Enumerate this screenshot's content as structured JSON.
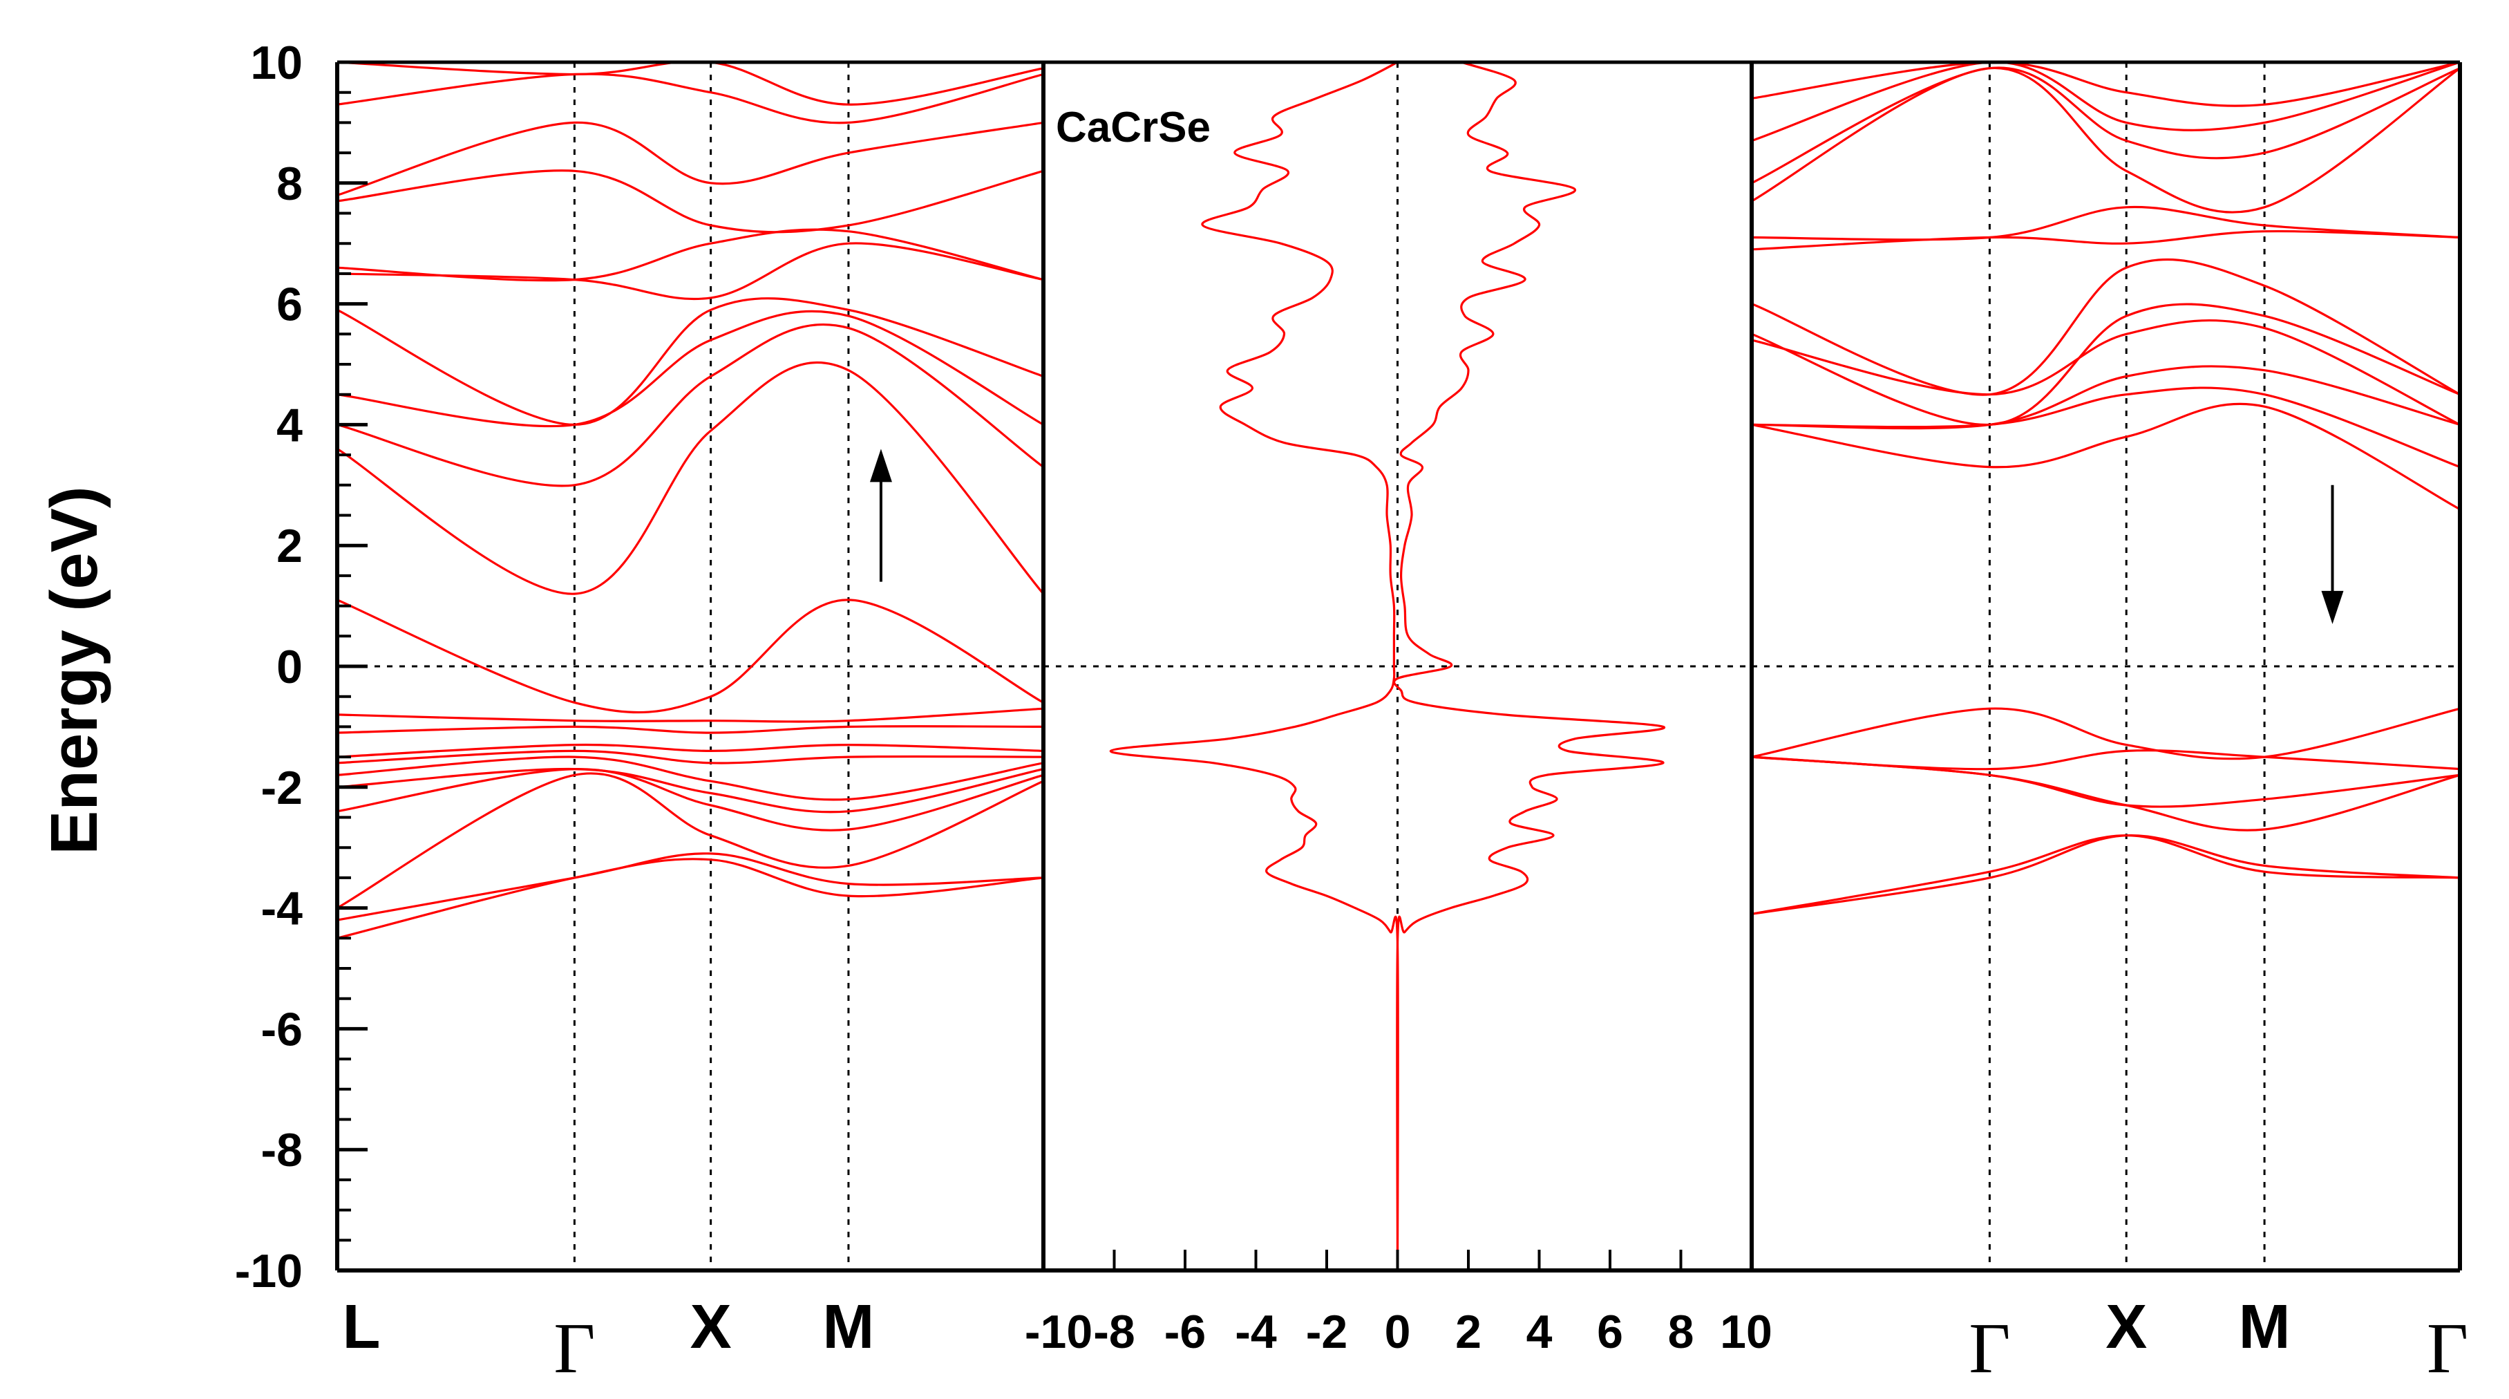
{
  "colors": {
    "bands": "#ff0000",
    "dos": "#ff0000",
    "axes": "#000000",
    "guides": "#000000",
    "arrow": "#000000"
  },
  "chart_data": {
    "type": "line",
    "ylabel": "Energy (eV)",
    "ylim": [
      -10,
      10
    ],
    "yticks": [
      10,
      8,
      6,
      4,
      2,
      0,
      -2,
      -4,
      -6,
      -8,
      -10
    ],
    "fermi_level": 0,
    "panels": [
      {
        "name": "spin-up band structure",
        "kpath_labels": [
          "L",
          "Γ",
          "X",
          "M",
          "Γ"
        ],
        "kpoint_positions": [
          0,
          0.336,
          0.529,
          0.724,
          1
        ],
        "kpoint_visible_labels": [
          "L",
          "Γ",
          "X",
          "M"
        ],
        "spin_arrow": "up",
        "spin_arrow_at": {
          "k": 0.77,
          "from_e": 1.4,
          "to_e": 3.6
        },
        "bands": [
          {
            "k": [
              0,
              0.336,
              0.529,
              0.724,
              1
            ],
            "e": [
              -4.5,
              -3.5,
              -3.2,
              -3.8,
              -3.5
            ]
          },
          {
            "k": [
              0,
              0.336,
              0.529,
              0.724,
              1
            ],
            "e": [
              -4.2,
              -3.5,
              -3.1,
              -3.6,
              -3.5
            ]
          },
          {
            "k": [
              0,
              0.336,
              0.529,
              0.724,
              1
            ],
            "e": [
              -4.0,
              -1.8,
              -2.8,
              -3.3,
              -1.9
            ]
          },
          {
            "k": [
              0,
              0.336,
              0.529,
              0.724,
              1
            ],
            "e": [
              -2.4,
              -1.7,
              -2.3,
              -2.7,
              -1.8
            ]
          },
          {
            "k": [
              0,
              0.336,
              0.529,
              0.724,
              1
            ],
            "e": [
              -2.0,
              -1.7,
              -2.1,
              -2.4,
              -1.7
            ]
          },
          {
            "k": [
              0,
              0.336,
              0.529,
              0.724,
              1
            ],
            "e": [
              -1.8,
              -1.5,
              -1.9,
              -2.2,
              -1.6
            ]
          },
          {
            "k": [
              0,
              0.336,
              0.529,
              0.724,
              1
            ],
            "e": [
              -1.6,
              -1.4,
              -1.6,
              -1.5,
              -1.5
            ]
          },
          {
            "k": [
              0,
              0.336,
              0.529,
              0.724,
              1
            ],
            "e": [
              -1.5,
              -1.3,
              -1.4,
              -1.3,
              -1.4
            ]
          },
          {
            "k": [
              0,
              0.336,
              0.529,
              0.724,
              1
            ],
            "e": [
              -1.1,
              -1.0,
              -1.1,
              -1.0,
              -1.0
            ]
          },
          {
            "k": [
              0,
              0.336,
              0.529,
              0.724,
              1
            ],
            "e": [
              -0.8,
              -0.9,
              -0.9,
              -0.9,
              -0.7
            ]
          },
          {
            "k": [
              0,
              0.336,
              0.529,
              0.724,
              1
            ],
            "e": [
              1.1,
              -0.6,
              -0.5,
              1.1,
              -0.6
            ]
          },
          {
            "k": [
              0,
              0.336,
              0.529,
              0.724,
              1
            ],
            "e": [
              3.6,
              1.2,
              3.9,
              4.9,
              1.2
            ]
          },
          {
            "k": [
              0,
              0.336,
              0.529,
              0.724,
              1
            ],
            "e": [
              4.0,
              3.0,
              4.8,
              5.6,
              3.3
            ]
          },
          {
            "k": [
              0,
              0.336,
              0.529,
              0.724,
              1
            ],
            "e": [
              4.5,
              4.0,
              5.4,
              5.8,
              4.0
            ]
          },
          {
            "k": [
              0,
              0.336,
              0.529,
              0.724,
              1
            ],
            "e": [
              5.9,
              4.0,
              5.9,
              5.9,
              4.8
            ]
          },
          {
            "k": [
              0,
              0.336,
              0.529,
              0.724,
              1
            ],
            "e": [
              6.5,
              6.4,
              6.1,
              7.0,
              6.4
            ]
          },
          {
            "k": [
              0,
              0.336,
              0.529,
              0.724,
              1
            ],
            "e": [
              6.6,
              6.4,
              7.0,
              7.2,
              6.4
            ]
          },
          {
            "k": [
              0,
              0.336,
              0.529,
              0.724,
              1
            ],
            "e": [
              7.7,
              8.2,
              7.3,
              7.3,
              8.2
            ]
          },
          {
            "k": [
              0,
              0.336,
              0.529,
              0.724,
              1
            ],
            "e": [
              7.8,
              9.0,
              8.0,
              8.5,
              9.0
            ]
          },
          {
            "k": [
              0,
              0.336,
              0.529,
              0.724,
              1
            ],
            "e": [
              9.3,
              9.8,
              9.5,
              9.0,
              9.8
            ]
          },
          {
            "k": [
              0,
              0.336,
              0.529,
              0.724,
              1
            ],
            "e": [
              10.0,
              9.8,
              10.0,
              9.3,
              9.9
            ]
          }
        ]
      },
      {
        "name": "density of states",
        "label": "CaCrSe",
        "xlim": [
          -10,
          10
        ],
        "xticks": [
          -10,
          -8,
          -6,
          -4,
          -2,
          0,
          2,
          4,
          6,
          8,
          10
        ],
        "spin_down_dos": {
          "e": [
            -10,
            -4.6,
            -4.4,
            -4.2,
            -4.0,
            -3.8,
            -3.6,
            -3.4,
            -3.2,
            -3.0,
            -2.8,
            -2.6,
            -2.4,
            -2.2,
            -2.0,
            -1.8,
            -1.6,
            -1.4,
            -1.2,
            -1.0,
            -0.8,
            -0.6,
            -0.4,
            -0.2,
            0.0,
            0.5,
            1.0,
            1.5,
            2.0,
            2.5,
            3.0,
            3.3,
            3.5,
            3.7,
            4.0,
            4.3,
            4.6,
            4.9,
            5.2,
            5.5,
            5.8,
            6.1,
            6.4,
            6.7,
            7.0,
            7.3,
            7.6,
            7.9,
            8.2,
            8.5,
            8.8,
            9.1,
            9.4,
            9.7,
            10.0
          ],
          "dos": [
            0,
            0,
            -0.2,
            -0.5,
            -1.2,
            -2.0,
            -3.0,
            -3.7,
            -3.3,
            -2.7,
            -2.6,
            -2.3,
            -2.8,
            -3.0,
            -2.9,
            -3.5,
            -5.2,
            -8.1,
            -4.8,
            -2.9,
            -1.7,
            -0.6,
            -0.2,
            -0.1,
            -0.1,
            -0.1,
            -0.1,
            -0.2,
            -0.2,
            -0.3,
            -0.3,
            -0.6,
            -1.2,
            -3.2,
            -4.3,
            -5.0,
            -4.1,
            -4.8,
            -3.6,
            -3.2,
            -3.5,
            -2.4,
            -1.9,
            -2.0,
            -3.3,
            -5.5,
            -4.2,
            -3.8,
            -3.1,
            -4.6,
            -3.3,
            -3.5,
            -2.3,
            -1.0,
            0
          ]
        },
        "spin_up_dos": {
          "e": [
            -10,
            -4.6,
            -4.4,
            -4.2,
            -4.0,
            -3.8,
            -3.6,
            -3.4,
            -3.2,
            -3.0,
            -2.8,
            -2.6,
            -2.4,
            -2.2,
            -2.0,
            -1.8,
            -1.6,
            -1.4,
            -1.2,
            -1.0,
            -0.8,
            -0.6,
            -0.4,
            -0.2,
            0.0,
            0.2,
            0.5,
            1.0,
            1.5,
            2.0,
            2.5,
            3.0,
            3.3,
            3.5,
            3.7,
            4.0,
            4.3,
            4.6,
            4.9,
            5.2,
            5.5,
            5.8,
            6.1,
            6.4,
            6.7,
            7.0,
            7.3,
            7.6,
            7.9,
            8.2,
            8.5,
            8.8,
            9.1,
            9.4,
            9.7,
            10.0
          ],
          "dos": [
            0,
            0,
            0.2,
            0.6,
            1.5,
            2.7,
            3.6,
            3.5,
            2.6,
            3.1,
            4.4,
            3.2,
            3.6,
            4.5,
            3.8,
            4.2,
            7.5,
            4.8,
            5.0,
            7.5,
            3.0,
            0.5,
            0.1,
            0.0,
            1.5,
            0.9,
            0.3,
            0.2,
            0.1,
            0.2,
            0.4,
            0.3,
            0.7,
            0.1,
            0.4,
            1.0,
            1.2,
            1.8,
            2.0,
            1.8,
            2.7,
            1.9,
            2.0,
            3.6,
            2.4,
            3.3,
            4.0,
            3.6,
            5.0,
            2.6,
            3.1,
            2.0,
            2.5,
            2.8,
            3.3,
            1.8
          ]
        }
      },
      {
        "name": "spin-down band structure",
        "kpath_labels": [
          "L",
          "Γ",
          "X",
          "M",
          "Γ"
        ],
        "kpoint_positions": [
          0,
          0.336,
          0.529,
          0.724,
          1
        ],
        "kpoint_visible_labels": [
          "Γ",
          "X",
          "M",
          "Γ"
        ],
        "spin_arrow": "down",
        "spin_arrow_at": {
          "k": 0.82,
          "from_e": 3.0,
          "to_e": 0.7
        },
        "bands": [
          {
            "k": [
              0,
              0.336,
              0.529,
              0.724,
              1
            ],
            "e": [
              -4.1,
              -3.4,
              -2.8,
              -3.4,
              -3.5
            ]
          },
          {
            "k": [
              0,
              0.336,
              0.529,
              0.724,
              1
            ],
            "e": [
              -4.1,
              -3.5,
              -2.8,
              -3.3,
              -3.5
            ]
          },
          {
            "k": [
              0,
              0.336,
              0.529,
              0.724,
              1
            ],
            "e": [
              -1.5,
              -1.8,
              -2.3,
              -2.7,
              -1.8
            ]
          },
          {
            "k": [
              0,
              0.336,
              0.529,
              0.724,
              1
            ],
            "e": [
              -1.5,
              -1.8,
              -2.3,
              -2.2,
              -1.8
            ]
          },
          {
            "k": [
              0,
              0.336,
              0.529,
              0.724,
              1
            ],
            "e": [
              -1.5,
              -1.7,
              -1.4,
              -1.5,
              -1.7
            ]
          },
          {
            "k": [
              0,
              0.336,
              0.529,
              0.724,
              1
            ],
            "e": [
              -1.5,
              -0.7,
              -1.3,
              -1.5,
              -0.7
            ]
          },
          {
            "k": [
              0,
              0.336,
              0.529,
              0.724,
              1
            ],
            "e": [
              4.0,
              3.3,
              3.8,
              4.3,
              2.6
            ]
          },
          {
            "k": [
              0,
              0.336,
              0.529,
              0.724,
              1
            ],
            "e": [
              4.0,
              4.0,
              4.5,
              4.5,
              3.3
            ]
          },
          {
            "k": [
              0,
              0.336,
              0.529,
              0.724,
              1
            ],
            "e": [
              4.0,
              4.0,
              4.8,
              4.9,
              4.0
            ]
          },
          {
            "k": [
              0,
              0.336,
              0.529,
              0.724,
              1
            ],
            "e": [
              5.4,
              4.5,
              5.5,
              5.6,
              4.0
            ]
          },
          {
            "k": [
              0,
              0.336,
              0.529,
              0.724,
              1
            ],
            "e": [
              5.5,
              4.0,
              5.8,
              5.8,
              4.5
            ]
          },
          {
            "k": [
              0,
              0.336,
              0.529,
              0.724,
              1
            ],
            "e": [
              6.0,
              4.5,
              6.6,
              6.3,
              4.5
            ]
          },
          {
            "k": [
              0,
              0.336,
              0.529,
              0.724,
              1
            ],
            "e": [
              6.9,
              7.1,
              7.0,
              7.2,
              7.1
            ]
          },
          {
            "k": [
              0,
              0.336,
              0.529,
              0.724,
              1
            ],
            "e": [
              7.1,
              7.1,
              7.6,
              7.3,
              7.1
            ]
          },
          {
            "k": [
              0,
              0.336,
              0.529,
              0.724,
              1
            ],
            "e": [
              7.7,
              9.9,
              8.2,
              7.6,
              9.9
            ]
          },
          {
            "k": [
              0,
              0.336,
              0.529,
              0.724,
              1
            ],
            "e": [
              8.0,
              9.9,
              8.7,
              8.5,
              9.9
            ]
          },
          {
            "k": [
              0,
              0.336,
              0.529,
              0.724,
              1
            ],
            "e": [
              8.7,
              10.0,
              9.0,
              9.0,
              10.0
            ]
          },
          {
            "k": [
              0,
              0.336,
              0.529,
              0.724,
              1
            ],
            "e": [
              9.4,
              10.0,
              9.5,
              9.3,
              10.0
            ]
          }
        ]
      }
    ]
  }
}
